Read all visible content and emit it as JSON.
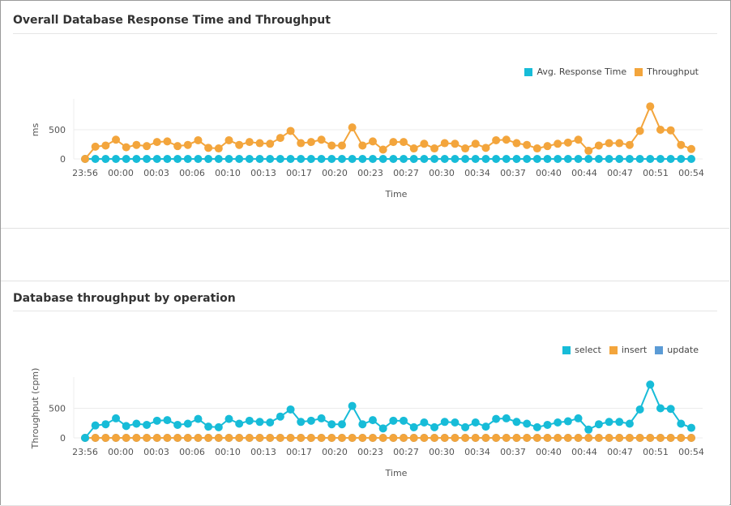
{
  "colors": {
    "cyan": "#17bcd8",
    "orange": "#f3a53c",
    "blue": "#5b9bd5",
    "grid": "#ececec"
  },
  "chart_data": [
    {
      "type": "line",
      "title": "Overall Database Response Time and Throughput",
      "xlabel": "Time",
      "ylabel": "ms",
      "ylim": [
        0,
        1000
      ],
      "yticks": [
        0,
        500
      ],
      "grid": true,
      "legend_position": "top-right",
      "xtick_labels": [
        "23:56",
        "00:00",
        "00:03",
        "00:06",
        "00:10",
        "00:13",
        "00:17",
        "00:20",
        "00:23",
        "00:27",
        "00:30",
        "00:34",
        "00:37",
        "00:40",
        "00:44",
        "00:47",
        "00:51",
        "00:54"
      ],
      "series": [
        {
          "name": "Avg. Response Time",
          "color": "#17bcd8",
          "values": [
            0,
            0,
            0,
            0,
            0,
            0,
            0,
            0,
            0,
            0,
            0,
            0,
            0,
            0,
            0,
            0,
            0,
            0,
            0,
            0,
            0,
            0,
            0,
            0,
            0,
            0,
            0,
            0,
            0,
            0,
            0,
            0,
            0,
            0,
            0,
            0,
            0,
            0,
            0,
            0,
            0,
            0,
            0,
            0,
            0,
            0,
            0,
            0,
            0,
            0,
            0,
            0,
            0,
            0,
            0,
            0,
            0,
            0,
            0,
            0
          ]
        },
        {
          "name": "Throughput",
          "color": "#f3a53c",
          "values": [
            0,
            210,
            230,
            330,
            200,
            240,
            220,
            290,
            300,
            220,
            240,
            320,
            190,
            180,
            320,
            240,
            290,
            270,
            260,
            360,
            480,
            270,
            290,
            330,
            230,
            230,
            540,
            230,
            300,
            160,
            290,
            290,
            180,
            260,
            180,
            270,
            260,
            180,
            260,
            190,
            320,
            330,
            270,
            240,
            180,
            220,
            260,
            280,
            330,
            140,
            230,
            270,
            270,
            240,
            480,
            900,
            500,
            490,
            240,
            170
          ]
        }
      ]
    },
    {
      "type": "line",
      "title": "Database throughput by operation",
      "xlabel": "Time",
      "ylabel": "Throughput (cpm)",
      "ylim": [
        0,
        1000
      ],
      "yticks": [
        0,
        500
      ],
      "grid": true,
      "legend_position": "top-right",
      "xtick_labels": [
        "23:56",
        "00:00",
        "00:03",
        "00:06",
        "00:10",
        "00:13",
        "00:17",
        "00:20",
        "00:23",
        "00:27",
        "00:30",
        "00:34",
        "00:37",
        "00:40",
        "00:44",
        "00:47",
        "00:51",
        "00:54"
      ],
      "series": [
        {
          "name": "select",
          "color": "#17bcd8",
          "values": [
            0,
            210,
            230,
            330,
            200,
            240,
            220,
            290,
            300,
            220,
            240,
            320,
            190,
            180,
            320,
            240,
            290,
            270,
            260,
            360,
            480,
            270,
            290,
            330,
            230,
            230,
            540,
            230,
            300,
            160,
            290,
            290,
            180,
            260,
            180,
            270,
            260,
            180,
            260,
            190,
            320,
            330,
            270,
            240,
            180,
            220,
            260,
            280,
            330,
            140,
            230,
            270,
            270,
            240,
            480,
            900,
            500,
            490,
            240,
            170
          ]
        },
        {
          "name": "insert",
          "color": "#f3a53c",
          "values": [
            0,
            0,
            0,
            0,
            0,
            0,
            0,
            0,
            0,
            0,
            0,
            0,
            0,
            0,
            0,
            0,
            0,
            0,
            0,
            0,
            0,
            0,
            0,
            0,
            0,
            0,
            0,
            0,
            0,
            0,
            0,
            0,
            0,
            0,
            0,
            0,
            0,
            0,
            0,
            0,
            0,
            0,
            0,
            0,
            0,
            0,
            0,
            0,
            0,
            0,
            0,
            0,
            0,
            0,
            0,
            0,
            0,
            0,
            0,
            0
          ]
        },
        {
          "name": "update",
          "color": "#5b9bd5",
          "values": [
            0,
            0,
            0,
            0,
            0,
            0,
            0,
            0,
            0,
            0,
            0,
            0,
            0,
            0,
            0,
            0,
            0,
            0,
            0,
            0,
            0,
            0,
            0,
            0,
            0,
            0,
            0,
            0,
            0,
            0,
            0,
            0,
            0,
            0,
            0,
            0,
            0,
            0,
            0,
            0,
            0,
            0,
            0,
            0,
            0,
            0,
            0,
            0,
            0,
            0,
            0,
            0,
            0,
            0,
            0,
            0,
            0,
            0,
            0,
            0
          ]
        }
      ]
    }
  ]
}
